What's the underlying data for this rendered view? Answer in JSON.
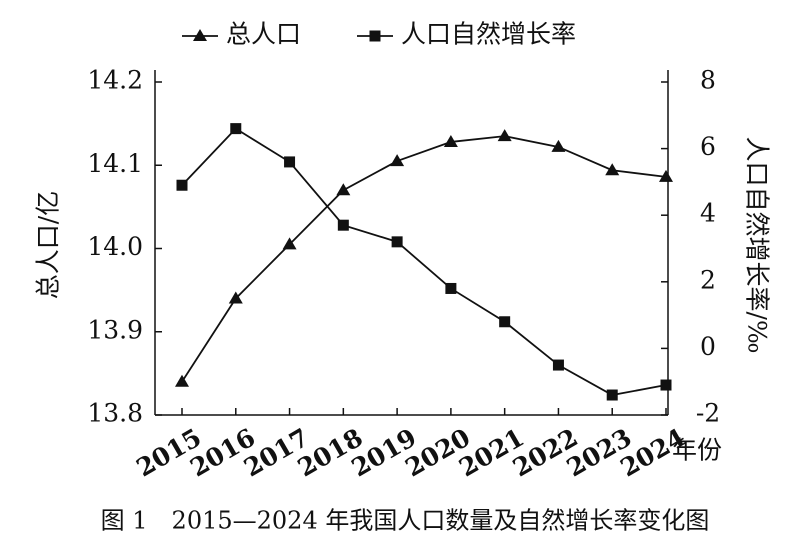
{
  "chart_data": {
    "type": "line",
    "caption": "图 1　2015—2024 年我国人口数量及自然增长率变化图",
    "x_label": "年份",
    "y_label": "总人口/亿",
    "y2_label": "人口自然增长率/‰",
    "categories": [
      "2015",
      "2016",
      "2017",
      "2018",
      "2019",
      "2020",
      "2021",
      "2022",
      "2023",
      "2024"
    ],
    "series": [
      {
        "name": "总人口",
        "color": "#111111",
        "marker": "triangle",
        "values": [
          13.84,
          13.94,
          14.005,
          14.07,
          14.105,
          14.128,
          14.135,
          14.122,
          14.094,
          14.086
        ]
      },
      {
        "name": "人口自然增长率",
        "color": "#111111",
        "marker": "square",
        "axis": "y2",
        "values": [
          4.9,
          6.6,
          5.6,
          3.7,
          3.2,
          1.8,
          0.8,
          -0.5,
          -1.4,
          -1.1
        ]
      }
    ],
    "ylim": [
      13.8,
      14.2
    ],
    "yticks": [
      13.8,
      13.9,
      {
        "value": 14,
        "label": "14.0"
      },
      14.1,
      14.2
    ],
    "y2lim": [
      -2,
      8
    ],
    "y2ticks": [
      -2,
      0,
      2,
      4,
      6,
      8
    ],
    "legend": "top"
  }
}
